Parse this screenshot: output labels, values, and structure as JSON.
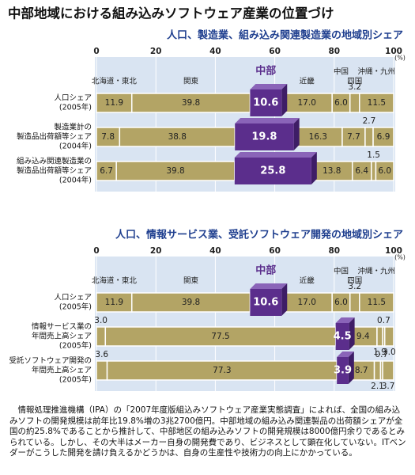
{
  "header": {
    "title": "中部地域における組み込みソフトウェア産業の位置づけ"
  },
  "chart_data": [
    {
      "type": "bar",
      "orientation": "horizontal",
      "stacked": true,
      "title": "人口、製造業、組み込み関連製造業の地域別シェア",
      "xlim": [
        0,
        100
      ],
      "xticks": [
        0,
        20,
        40,
        60,
        80,
        100
      ],
      "x_unit": "(%)",
      "categories": [
        [
          "人口シェア",
          "(2005年)"
        ],
        [
          "製造業計の",
          "製造品出荷額等シェア",
          "(2004年)"
        ],
        [
          "組み込み関連製造業の",
          "製造品出荷額等シェア",
          "(2004年)"
        ]
      ],
      "series": [
        {
          "name": "北海道・東北",
          "color": "#b3a465",
          "values": [
            11.9,
            7.8,
            6.7
          ]
        },
        {
          "name": "関東",
          "color": "#b3a465",
          "values": [
            39.8,
            38.8,
            39.8
          ]
        },
        {
          "name": "中部",
          "color": "#5b2e8c",
          "values": [
            10.6,
            19.8,
            25.8
          ]
        },
        {
          "name": "近畿",
          "color": "#b3a465",
          "values": [
            17.0,
            16.3,
            13.8
          ]
        },
        {
          "name": "中国",
          "color": "#b3a465",
          "values": [
            6.0,
            7.7,
            6.4
          ]
        },
        {
          "name": "四国",
          "color": "#b3a465",
          "values": [
            3.2,
            2.7,
            1.5
          ]
        },
        {
          "name": "沖縄・九州",
          "color": "#b3a465",
          "values": [
            11.5,
            6.9,
            6.0
          ]
        }
      ],
      "value_labels": [
        [
          "11.9",
          "7.8",
          "6.7"
        ],
        [
          "39.8",
          "38.8",
          "39.8"
        ],
        [
          "10.6",
          "19.8",
          "25.8"
        ],
        [
          "17.0",
          "16.3",
          "13.8"
        ],
        [
          "6.0",
          "7.7",
          "6.4"
        ],
        [
          "3.2",
          "2.7",
          "1.5"
        ],
        [
          "11.5",
          "6.9",
          "6.0"
        ]
      ]
    },
    {
      "type": "bar",
      "orientation": "horizontal",
      "stacked": true,
      "title": "人口、情報サービス業、受託ソフトウェア開発の地域別シェア",
      "xlim": [
        0,
        100
      ],
      "xticks": [
        0,
        20,
        40,
        60,
        80,
        100
      ],
      "x_unit": "(%)",
      "categories": [
        [
          "人口シェア",
          "(2005年)"
        ],
        [
          "情報サービス業の",
          "年間売上高シェア",
          "(2005年)"
        ],
        [
          "受託ソフトウェア開発の",
          "年間売上高シェア",
          "(2005年)"
        ]
      ],
      "series": [
        {
          "name": "北海道・東北",
          "color": "#b3a465",
          "values": [
            11.9,
            3.0,
            3.6
          ]
        },
        {
          "name": "関東",
          "color": "#b3a465",
          "values": [
            39.8,
            77.5,
            77.3
          ]
        },
        {
          "name": "中部",
          "color": "#5b2e8c",
          "values": [
            10.6,
            4.5,
            3.9
          ]
        },
        {
          "name": "近畿",
          "color": "#b3a465",
          "values": [
            17.0,
            9.4,
            8.7
          ]
        },
        {
          "name": "中国",
          "color": "#b3a465",
          "values": [
            6.0,
            1.9,
            2.1
          ]
        },
        {
          "name": "四国",
          "color": "#b3a465",
          "values": [
            3.2,
            0.7,
            0.7
          ]
        },
        {
          "name": "沖縄・九州",
          "color": "#b3a465",
          "values": [
            11.5,
            3.0,
            3.7
          ]
        }
      ],
      "value_labels": [
        [
          "11.9",
          "3.0",
          "3.6"
        ],
        [
          "39.8",
          "77.5",
          "77.3"
        ],
        [
          "10.6",
          "4.5",
          "3.9"
        ],
        [
          "17.0",
          "9.4",
          "8.7"
        ],
        [
          "6.0",
          "1.9",
          "2.1"
        ],
        [
          "3.2",
          "0.7",
          "0.7"
        ],
        [
          "11.5",
          "3.0",
          "3.7"
        ]
      ]
    }
  ],
  "footer": {
    "text": "情報処理推進機構（IPA）の「2007年度版組込みソフトウェア産業実態調査」によれば、全国の組み込みソフトの開発規模は前年比19.8%増の3兆2700億円。中部地域の組み込み関連製品の出荷額シェアが全国の約25.8%であることから推計して、中部地区の組み込みソフトの開発規模は8000億円余りであるとみられている。しかし、その大半はメーカー自身の開発費であり、ビジネスとして顕在化していない。ITベンダーがこうした開発を請け負えるかどうかは、自身の生産性や技術力の向上にかかっている。"
  }
}
